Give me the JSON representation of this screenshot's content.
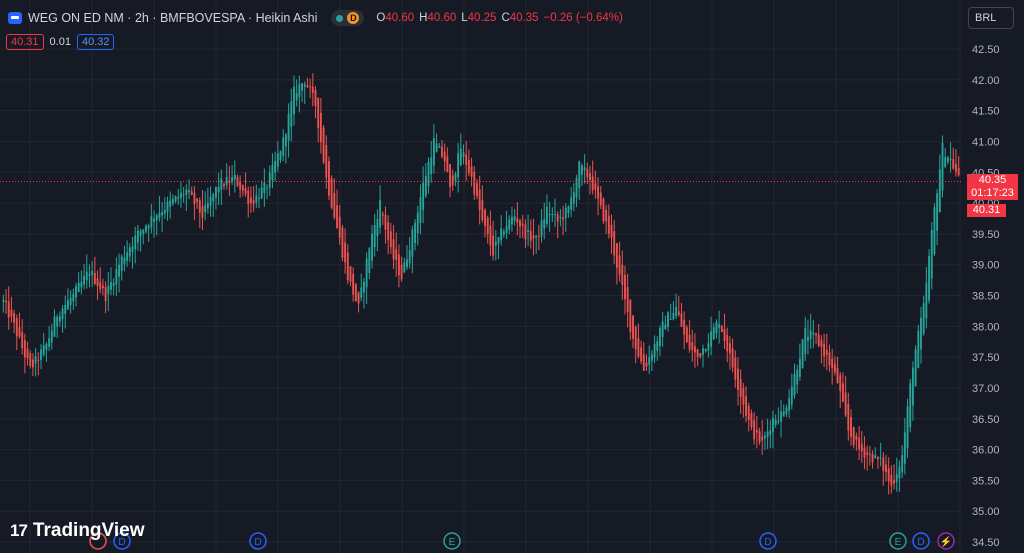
{
  "header": {
    "title": "WEG ON ED NM · 2h · BMFBOVESPA · Heikin Ashi",
    "status_letter": "D",
    "ohlc": [
      {
        "k": "O",
        "v": "40.60"
      },
      {
        "k": "H",
        "v": "40.60"
      },
      {
        "k": "L",
        "v": "40.25"
      },
      {
        "k": "C",
        "v": "40.35"
      },
      {
        "k": "",
        "v": "−0.26 (−0.64%)"
      }
    ]
  },
  "spread": {
    "bid": "40.31",
    "diff": "0.01",
    "ask": "40.32"
  },
  "currency": "BRL",
  "price_tag": {
    "price": "40.35",
    "countdown": "01:17:23",
    "bid": "40.31"
  },
  "logo": {
    "mark": "17",
    "text": "TradingView"
  },
  "colors": {
    "up": "#26a69a",
    "down": "#ef5350",
    "bg": "#161a25",
    "grid": "#232734",
    "line": "#f23645"
  },
  "chart_data": {
    "type": "candlestick",
    "style": "Heikin Ashi",
    "interval": "2h",
    "ylim": [
      34.5,
      42.5
    ],
    "yticks": [
      "42.50",
      "42.00",
      "41.50",
      "41.00",
      "40.50",
      "40.00",
      "39.50",
      "39.00",
      "38.50",
      "38.00",
      "37.50",
      "37.00",
      "36.50",
      "36.00",
      "35.50",
      "35.00",
      "34.50"
    ],
    "last_price": 40.35,
    "event_markers": [
      {
        "label": "D",
        "color": "#2962ff"
      },
      {
        "label": "D",
        "color": "#2962ff"
      },
      {
        "label": "E",
        "color": "#26a69a"
      },
      {
        "label": "D",
        "color": "#2962ff"
      },
      {
        "label": "E",
        "color": "#26a69a"
      },
      {
        "label": "D",
        "color": "#2962ff"
      },
      {
        "label": "⚡",
        "color": "#9c27b0"
      }
    ],
    "anchors": [
      [
        0,
        38.4
      ],
      [
        4,
        38.0
      ],
      [
        10,
        37.3
      ],
      [
        16,
        37.7
      ],
      [
        20,
        38.2
      ],
      [
        26,
        38.5
      ],
      [
        32,
        38.9
      ],
      [
        38,
        38.5
      ],
      [
        44,
        39.1
      ],
      [
        50,
        39.5
      ],
      [
        56,
        39.8
      ],
      [
        62,
        40.0
      ],
      [
        68,
        40.2
      ],
      [
        74,
        39.8
      ],
      [
        80,
        40.3
      ],
      [
        86,
        40.4
      ],
      [
        92,
        40.0
      ],
      [
        98,
        40.3
      ],
      [
        104,
        41.0
      ],
      [
        108,
        41.8
      ],
      [
        112,
        42.0
      ],
      [
        116,
        41.6
      ],
      [
        120,
        40.4
      ],
      [
        124,
        39.6
      ],
      [
        128,
        38.8
      ],
      [
        132,
        38.3
      ],
      [
        136,
        39.3
      ],
      [
        140,
        40.0
      ],
      [
        144,
        39.2
      ],
      [
        148,
        38.8
      ],
      [
        152,
        39.5
      ],
      [
        156,
        40.3
      ],
      [
        160,
        41.0
      ],
      [
        164,
        40.7
      ],
      [
        166,
        40.2
      ],
      [
        170,
        40.9
      ],
      [
        174,
        40.4
      ],
      [
        178,
        39.7
      ],
      [
        182,
        39.2
      ],
      [
        186,
        39.6
      ],
      [
        190,
        39.8
      ],
      [
        194,
        39.5
      ],
      [
        198,
        39.4
      ],
      [
        202,
        39.9
      ],
      [
        206,
        39.7
      ],
      [
        210,
        39.9
      ],
      [
        214,
        40.6
      ],
      [
        218,
        40.4
      ],
      [
        222,
        39.9
      ],
      [
        226,
        39.4
      ],
      [
        230,
        38.6
      ],
      [
        234,
        37.8
      ],
      [
        238,
        37.3
      ],
      [
        242,
        37.7
      ],
      [
        246,
        38.1
      ],
      [
        250,
        38.3
      ],
      [
        254,
        37.7
      ],
      [
        258,
        37.5
      ],
      [
        262,
        37.8
      ],
      [
        266,
        38.1
      ],
      [
        270,
        37.5
      ],
      [
        274,
        36.9
      ],
      [
        278,
        36.3
      ],
      [
        282,
        36.1
      ],
      [
        286,
        36.5
      ],
      [
        290,
        36.6
      ],
      [
        294,
        37.2
      ],
      [
        298,
        37.9
      ],
      [
        302,
        37.8
      ],
      [
        306,
        37.5
      ],
      [
        310,
        37.1
      ],
      [
        314,
        36.3
      ],
      [
        318,
        36.0
      ],
      [
        322,
        35.9
      ],
      [
        326,
        35.8
      ],
      [
        330,
        35.4
      ],
      [
        334,
        35.9
      ],
      [
        338,
        37.4
      ],
      [
        342,
        38.3
      ],
      [
        346,
        39.9
      ],
      [
        349,
        40.9
      ],
      [
        352,
        40.7
      ],
      [
        355,
        40.4
      ]
    ]
  }
}
